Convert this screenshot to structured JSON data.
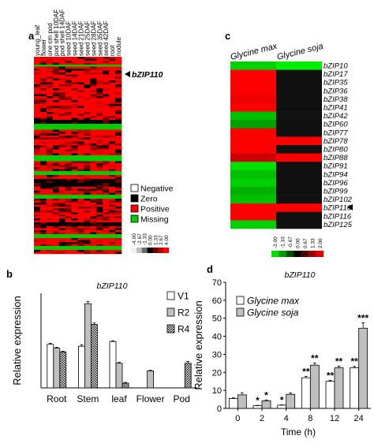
{
  "panel_labels": {
    "a": "a",
    "b": "b",
    "c": "c",
    "d": "d"
  },
  "heatmap_a": {
    "columns": [
      "young_leaf",
      "flower",
      "one cm pod",
      "pod shell 10DAF",
      "pod shell 14DAF",
      "seed 10DAF",
      "seed 14DAF",
      "seed 21DAF",
      "seed 25DAF",
      "seed 28DAF",
      "seed 35DAF",
      "seed 42DAF",
      "root",
      "nodule"
    ],
    "marker_label": "bZIP110",
    "legend": [
      {
        "label": "Negative",
        "color": "#ffffff"
      },
      {
        "label": "Zero",
        "color": "#000000"
      },
      {
        "label": "Positive",
        "color": "#ff0000"
      },
      {
        "label": "Missing",
        "color": "#00cc00"
      }
    ],
    "scale_ticks": [
      "-4.00",
      "-2.67",
      "-1.33",
      "0.00",
      "1.33",
      "2.67",
      "4.00"
    ],
    "scale_colors": [
      "#f2f2f2",
      "#bdbdbd",
      "#6b6b6b",
      "#000000",
      "#6b0000",
      "#c00000",
      "#ff0000"
    ]
  },
  "heatmap_c": {
    "columns": [
      "Glycine max",
      "Glycine soja"
    ],
    "genes": [
      "bZIP10",
      "bZIP17",
      "bZIP35",
      "bZIP36",
      "bZIP38",
      "bZIP41",
      "bZIP42",
      "bZIP60",
      "bZIP77",
      "bZIP78",
      "bZIP80",
      "bZIP88",
      "bZIP91",
      "bZIP94",
      "bZIP96",
      "bZIP99",
      "bZIP102",
      "bZIP110",
      "bZIP116",
      "bZIP125"
    ],
    "marker_gene_index": 17,
    "scale_ticks": [
      "-2.00",
      "-1.33",
      "-0.67",
      "0.00",
      "0.67",
      "1.33",
      "2.00"
    ],
    "scale_colors": [
      "#00e000",
      "#009a00",
      "#004d00",
      "#000000",
      "#4d0000",
      "#9a0000",
      "#e00000"
    ]
  },
  "chart_data": [
    {
      "type": "bar",
      "panel": "b",
      "title": "bZIP110",
      "ylabel": "Relative expression",
      "xlabel": "",
      "ylim": [
        0,
        0.5
      ],
      "categories": [
        "Root",
        "Stem",
        "leaf",
        "Flower",
        "Pod"
      ],
      "series": [
        {
          "name": "V1",
          "values": [
            0.23,
            0.22,
            0.245,
            null,
            null
          ],
          "errors": [
            0.005,
            0.008,
            0.004,
            null,
            null
          ],
          "color": "#ffffff"
        },
        {
          "name": "R2",
          "values": [
            0.21,
            0.445,
            0.13,
            0.09,
            null
          ],
          "errors": [
            0.005,
            0.012,
            0.005,
            0.003,
            null
          ],
          "color": "#bfbfbf"
        },
        {
          "name": "R4",
          "values": [
            0.19,
            0.335,
            0.025,
            null,
            0.13
          ],
          "errors": [
            0.004,
            0.008,
            0.004,
            null,
            0.01
          ],
          "color": "#555555"
        }
      ]
    },
    {
      "type": "bar",
      "panel": "d",
      "title": "bZIP110",
      "ylabel": "Relative expression",
      "xlabel": "Time (h)",
      "ylim": [
        0,
        70
      ],
      "yticks": [
        0,
        10,
        20,
        30,
        40,
        50,
        60,
        70
      ],
      "categories": [
        "0",
        "2",
        "4",
        "8",
        "12",
        "24"
      ],
      "series": [
        {
          "name": "Glycine max",
          "values": [
            5.5,
            1.5,
            1.8,
            17.0,
            15.0,
            22.5
          ],
          "errors": [
            0.4,
            0.2,
            0.2,
            0.8,
            0.6,
            0.8
          ],
          "significance": [
            "",
            "*",
            "*",
            "**",
            "**",
            "**"
          ],
          "color": "#ffffff"
        },
        {
          "name": "Glycine soja",
          "values": [
            7.5,
            4.2,
            7.8,
            24.0,
            22.5,
            44.5
          ],
          "errors": [
            1.2,
            0.5,
            0.8,
            1.2,
            1.0,
            3.0
          ],
          "significance": [
            "",
            "*",
            "",
            "**",
            "**",
            "***"
          ],
          "color": "#bfbfbf"
        }
      ]
    }
  ]
}
